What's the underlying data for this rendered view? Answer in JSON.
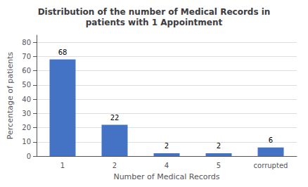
{
  "chart_data": {
    "type": "bar",
    "title": "Distribution of the number of Medical Records in\npatients with 1 Appointment",
    "xlabel": "Number of Medical Records",
    "ylabel": "Percentage of patients",
    "categories": [
      "1",
      "2",
      "4",
      "5",
      "corrupted"
    ],
    "values": [
      68,
      22,
      2,
      2,
      6
    ],
    "color": "#4472C4",
    "ylim": [
      0,
      85
    ],
    "yticks": [
      0,
      10,
      20,
      30,
      40,
      50,
      60,
      70,
      80
    ],
    "grid": true,
    "data_labels": true
  }
}
